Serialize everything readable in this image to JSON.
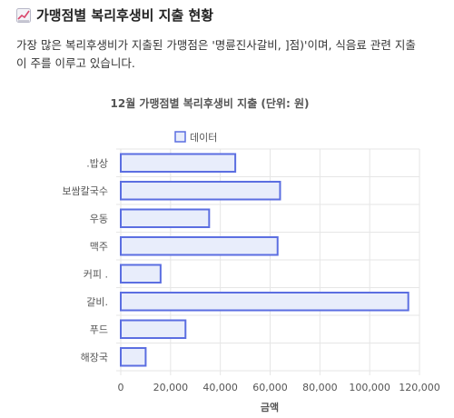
{
  "header": {
    "icon": "chart-increasing-icon",
    "title": "가맹점별 복리후생비 지출 현황"
  },
  "description": {
    "line1": "가장 많은 복리후생비가 지출된 가맹점은 '명륜진사갈비,        ]점)'이며, 식음료 관련 지출",
    "line2": "이 주를 이루고 있습니다."
  },
  "chart_data": {
    "type": "bar",
    "orientation": "horizontal",
    "title": "12월 가맹점별 복리후생비 지출 (단위: 원)",
    "xlabel": "금액",
    "ylabel": "",
    "categories": [
      ".밥상",
      "보쌈칼국수",
      "우동",
      "맥주",
      "커피 .",
      "갈비.",
      "푸드",
      "해장국"
    ],
    "series": [
      {
        "name": "데이터",
        "values": [
          46000,
          64000,
          35500,
          63000,
          16000,
          115500,
          26000,
          10000
        ]
      }
    ],
    "xlim": [
      0,
      120000
    ],
    "xticks": [
      "0",
      "20,000",
      "40,000",
      "60,000",
      "80,000",
      "100,000",
      "120,000"
    ],
    "xtick_values": [
      0,
      20000,
      40000,
      60000,
      80000,
      100000,
      120000
    ],
    "grid": true,
    "legend": "top-center",
    "colors": {
      "bar_fill": "#e8edfb",
      "bar_stroke": "#5b6ee1",
      "grid": "#e6e6e6",
      "axis_text": "#555555"
    }
  }
}
